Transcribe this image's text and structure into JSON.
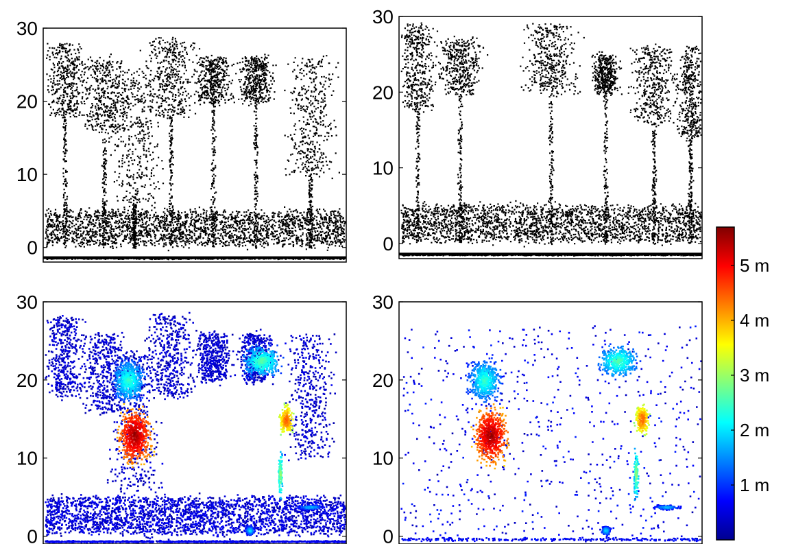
{
  "chart_data": [
    {
      "type": "scatter",
      "panel": "top-left",
      "color_mode": "black",
      "ylim": [
        -2,
        30
      ],
      "y_ticks": [
        "0",
        "10",
        "20",
        "30"
      ],
      "description_points": "dense point cloud of tree canopies 20-28, understory 0-5, ground line near -1.5",
      "series": [
        {
          "x": [
            0.0,
            0.05,
            0.1,
            0.15,
            0.2,
            0.25,
            0.3,
            0.35,
            0.4,
            0.45,
            0.5,
            0.55,
            0.6,
            0.65,
            0.7,
            0.75,
            0.8,
            0.85,
            0.9,
            0.95,
            1.0
          ],
          "y": [
            27,
            27.5,
            27,
            26,
            24,
            22,
            28,
            28,
            27,
            25,
            24,
            23,
            26,
            26,
            25,
            24,
            25,
            26,
            26,
            25,
            25
          ]
        }
      ]
    },
    {
      "type": "scatter",
      "panel": "top-right",
      "color_mode": "black",
      "ylim": [
        -2,
        30
      ],
      "y_ticks": [
        "0",
        "10",
        "20",
        "30"
      ],
      "series": [
        {
          "x": [
            0.0,
            0.05,
            0.1,
            0.15,
            0.2,
            0.25,
            0.3,
            0.35,
            0.4,
            0.45,
            0.5,
            0.55,
            0.6,
            0.65,
            0.7,
            0.75,
            0.8,
            0.85,
            0.9,
            0.95,
            1.0
          ],
          "y": [
            28,
            27,
            26,
            25,
            22,
            10,
            8,
            7,
            27,
            28,
            28,
            27,
            24,
            25,
            24,
            25,
            26,
            25,
            25,
            24,
            24
          ]
        }
      ]
    },
    {
      "type": "scatter",
      "panel": "bottom-left",
      "color_mode": "colormap",
      "ylim": [
        -1,
        30
      ],
      "y_ticks": [
        "0",
        "10",
        "20",
        "30"
      ],
      "hotspots": [
        {
          "x": 0.3,
          "y": 13,
          "value": 5.5
        },
        {
          "x": 0.78,
          "y": 15,
          "value": 4.5
        },
        {
          "x": 0.68,
          "y": 23,
          "value": 2.5
        }
      ]
    },
    {
      "type": "scatter",
      "panel": "bottom-right",
      "color_mode": "colormap",
      "ylim": [
        -1,
        30
      ],
      "y_ticks": [
        "0",
        "10",
        "20",
        "30"
      ],
      "hotspots": [
        {
          "x": 0.3,
          "y": 13,
          "value": 5.5
        },
        {
          "x": 0.78,
          "y": 15,
          "value": 4.5
        },
        {
          "x": 0.68,
          "y": 23,
          "value": 2.5
        }
      ]
    }
  ],
  "colorbar": {
    "colormap": "jet",
    "min": 0,
    "max": 5.7,
    "ticks": [
      {
        "value": 1,
        "label": "1 m"
      },
      {
        "value": 2,
        "label": "2 m"
      },
      {
        "value": 3,
        "label": "3 m"
      },
      {
        "value": 4,
        "label": "4 m"
      },
      {
        "value": 5,
        "label": "5 m"
      }
    ]
  }
}
